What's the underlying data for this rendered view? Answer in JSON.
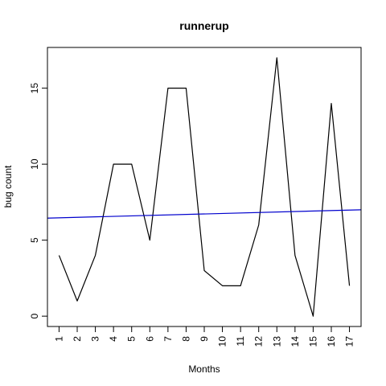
{
  "chart_data": {
    "type": "line",
    "title": "runnerup",
    "xlabel": "Months",
    "ylabel": "bug count",
    "x": [
      1,
      2,
      3,
      4,
      5,
      6,
      7,
      8,
      9,
      10,
      11,
      12,
      13,
      14,
      15,
      16,
      17
    ],
    "xlim": [
      0.36,
      17.64
    ],
    "ylim": [
      -0.68,
      17.68
    ],
    "x_ticks": [
      "1",
      "2",
      "3",
      "4",
      "5",
      "6",
      "7",
      "8",
      "9",
      "10",
      "11",
      "12",
      "13",
      "14",
      "15",
      "16",
      "17"
    ],
    "y_ticks": [
      0,
      5,
      10,
      15
    ],
    "series": [
      {
        "type": "line",
        "color": "#000000",
        "values": [
          4,
          1,
          4,
          10,
          10,
          5,
          15,
          15,
          3,
          2,
          2,
          6,
          17,
          4,
          0,
          14,
          2
        ]
      },
      {
        "type": "trend",
        "color": "#0000cd",
        "x": [
          0.36,
          17.64
        ],
        "values": [
          6.45,
          7.0
        ]
      }
    ],
    "grid": false,
    "box": true
  }
}
